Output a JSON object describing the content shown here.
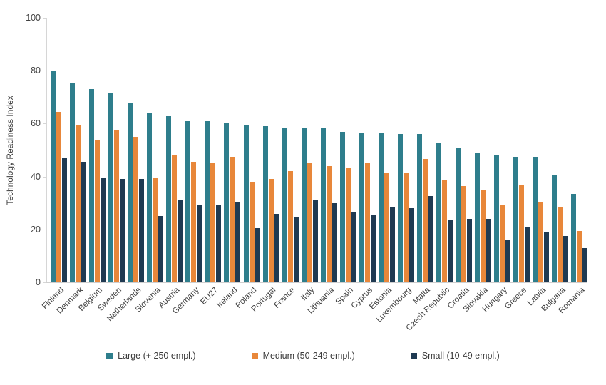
{
  "chart_data": {
    "type": "bar",
    "title": "",
    "xlabel": "",
    "ylabel": "Technology Readiness Index",
    "ylim": [
      0,
      100
    ],
    "yticks": [
      0,
      20,
      40,
      60,
      80,
      100
    ],
    "grid": false,
    "legend_position": "bottom",
    "categories": [
      "Finland",
      "Denmark",
      "Belgium",
      "Sweden",
      "Netherlands",
      "Slovenia",
      "Austria",
      "Germany",
      "EU27",
      "Ireland",
      "Poland",
      "Portugal",
      "France",
      "Italy",
      "Lithuania",
      "Spain",
      "Cyprus",
      "Estonia",
      "Luxembourg",
      "Malta",
      "Czech Republic",
      "Croatia",
      "Slovakia",
      "Hungary",
      "Greece",
      "Latvia",
      "Bulgaria",
      "Romania"
    ],
    "series": [
      {
        "name": "Large (+ 250 empl.)",
        "color": "#2e7e8c",
        "values": [
          80,
          75.5,
          73,
          71.5,
          68,
          64,
          63,
          61,
          61,
          60.5,
          59.5,
          59,
          58.5,
          58.5,
          58.5,
          57,
          56.5,
          56.5,
          56,
          56,
          52.5,
          51,
          49,
          48,
          47.5,
          47.5,
          40.5,
          33.5
        ]
      },
      {
        "name": "Medium (50-249 empl.)",
        "color": "#e8873a",
        "values": [
          64.5,
          59.5,
          54,
          57.5,
          55,
          39.5,
          48,
          45.5,
          45,
          47.5,
          38,
          39,
          42,
          45,
          44,
          43,
          45,
          41.5,
          41.5,
          46.5,
          38.5,
          36.5,
          35,
          29.5,
          37,
          30.5,
          28.5,
          19.5
        ]
      },
      {
        "name": "Small (10-49 empl.)",
        "color": "#1f3a52",
        "values": [
          47,
          45.5,
          39.5,
          39,
          39,
          25,
          31,
          29.5,
          29,
          30.5,
          20.5,
          26,
          24.5,
          31,
          30,
          26.5,
          25.5,
          28.5,
          28,
          32.5,
          23.5,
          24,
          24,
          16,
          21,
          19,
          17.5,
          13
        ]
      }
    ]
  }
}
